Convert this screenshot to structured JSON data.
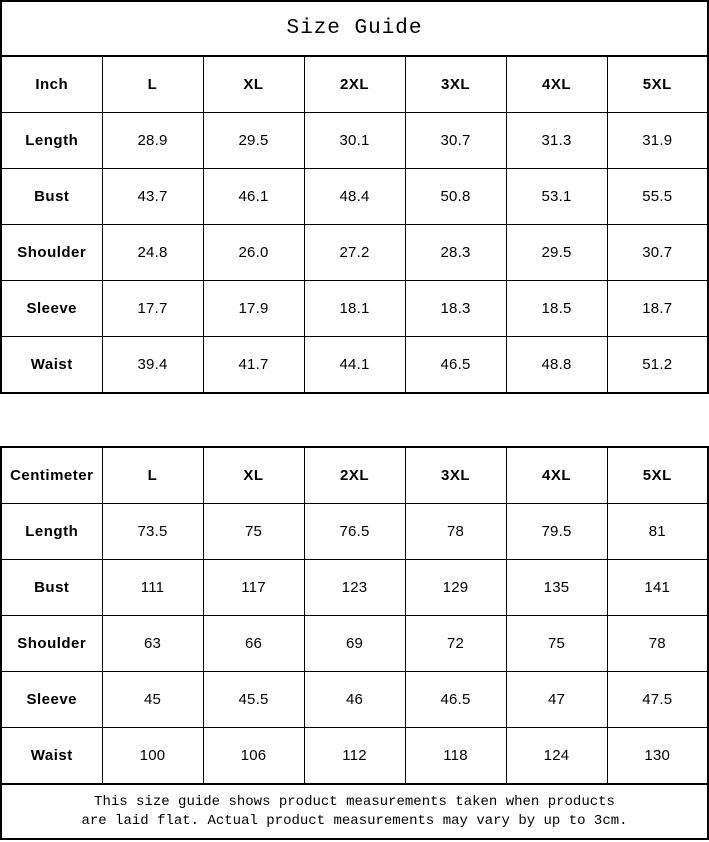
{
  "title": "Size Guide",
  "colors": {
    "border": "#000000",
    "background": "#ffffff",
    "text": "#000000"
  },
  "tables": [
    {
      "unit_label": "Inch",
      "columns": [
        "L",
        "XL",
        "2XL",
        "3XL",
        "4XL",
        "5XL"
      ],
      "rows": [
        {
          "label": "Length",
          "values": [
            "28.9",
            "29.5",
            "30.1",
            "30.7",
            "31.3",
            "31.9"
          ]
        },
        {
          "label": "Bust",
          "values": [
            "43.7",
            "46.1",
            "48.4",
            "50.8",
            "53.1",
            "55.5"
          ]
        },
        {
          "label": "Shoulder",
          "values": [
            "24.8",
            "26.0",
            "27.2",
            "28.3",
            "29.5",
            "30.7"
          ]
        },
        {
          "label": "Sleeve",
          "values": [
            "17.7",
            "17.9",
            "18.1",
            "18.3",
            "18.5",
            "18.7"
          ]
        },
        {
          "label": "Waist",
          "values": [
            "39.4",
            "41.7",
            "44.1",
            "46.5",
            "48.8",
            "51.2"
          ]
        }
      ]
    },
    {
      "unit_label": "Centimeter",
      "columns": [
        "L",
        "XL",
        "2XL",
        "3XL",
        "4XL",
        "5XL"
      ],
      "rows": [
        {
          "label": "Length",
          "values": [
            "73.5",
            "75",
            "76.5",
            "78",
            "79.5",
            "81"
          ]
        },
        {
          "label": "Bust",
          "values": [
            "111",
            "117",
            "123",
            "129",
            "135",
            "141"
          ]
        },
        {
          "label": "Shoulder",
          "values": [
            "63",
            "66",
            "69",
            "72",
            "75",
            "78"
          ]
        },
        {
          "label": "Sleeve",
          "values": [
            "45",
            "45.5",
            "46",
            "46.5",
            "47",
            "47.5"
          ]
        },
        {
          "label": "Waist",
          "values": [
            "100",
            "106",
            "112",
            "118",
            "124",
            "130"
          ]
        }
      ]
    }
  ],
  "footer": {
    "line1": "This size guide shows product measurements taken when products",
    "line2": "are laid flat. Actual product measurements may vary by up to 3cm."
  },
  "chart_data": [
    {
      "type": "table",
      "title": "Size Guide (Inch)",
      "columns": [
        "Inch",
        "L",
        "XL",
        "2XL",
        "3XL",
        "4XL",
        "5XL"
      ],
      "rows": [
        [
          "Length",
          28.9,
          29.5,
          30.1,
          30.7,
          31.3,
          31.9
        ],
        [
          "Bust",
          43.7,
          46.1,
          48.4,
          50.8,
          53.1,
          55.5
        ],
        [
          "Shoulder",
          24.8,
          26.0,
          27.2,
          28.3,
          29.5,
          30.7
        ],
        [
          "Sleeve",
          17.7,
          17.9,
          18.1,
          18.3,
          18.5,
          18.7
        ],
        [
          "Waist",
          39.4,
          41.7,
          44.1,
          46.5,
          48.8,
          51.2
        ]
      ]
    },
    {
      "type": "table",
      "title": "Size Guide (Centimeter)",
      "columns": [
        "Centimeter",
        "L",
        "XL",
        "2XL",
        "3XL",
        "4XL",
        "5XL"
      ],
      "rows": [
        [
          "Length",
          73.5,
          75,
          76.5,
          78,
          79.5,
          81
        ],
        [
          "Bust",
          111,
          117,
          123,
          129,
          135,
          141
        ],
        [
          "Shoulder",
          63,
          66,
          69,
          72,
          75,
          78
        ],
        [
          "Sleeve",
          45,
          45.5,
          46,
          46.5,
          47,
          47.5
        ],
        [
          "Waist",
          100,
          106,
          112,
          118,
          124,
          130
        ]
      ]
    }
  ]
}
